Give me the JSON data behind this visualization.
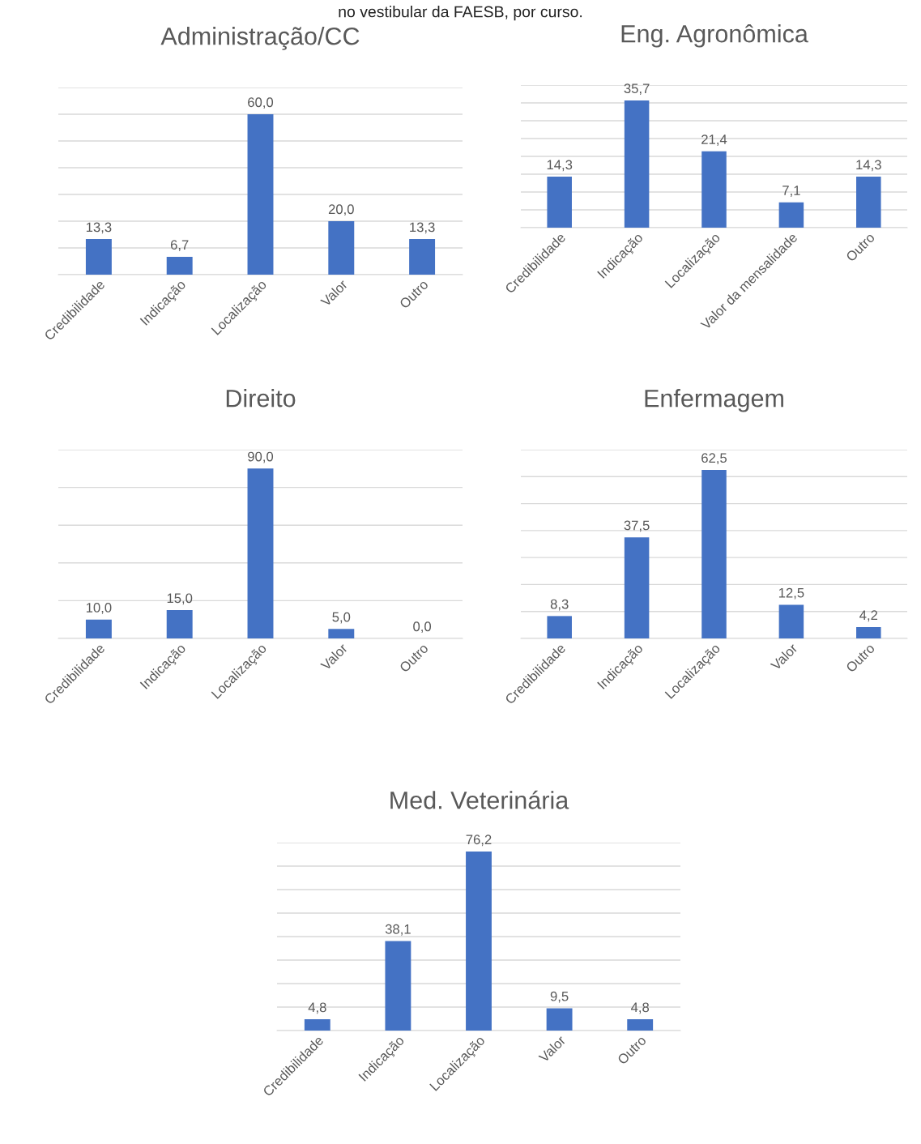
{
  "chart_data": [
    {
      "type": "bar",
      "title": "Administração/CC",
      "annotations": [
        "no vestibular da FAESB, por curso."
      ],
      "categories": [
        "Credibilidade",
        "Indicação",
        "Localização",
        "Valor",
        "Outro"
      ],
      "values": [
        13.3,
        6.7,
        60.0,
        20.0,
        13.3
      ],
      "color": "#4472c4",
      "data_labels": true,
      "value_labels": [
        "13,3",
        "6,7",
        "60,0",
        "20,0",
        "13,3"
      ],
      "ylim": [
        0,
        70
      ],
      "yticks": [
        {
          "value": 0,
          "label": null
        },
        {
          "value": 10,
          "label": null
        },
        {
          "value": 20,
          "label": null
        },
        {
          "value": 30,
          "label": null
        },
        {
          "value": 40,
          "label": null
        },
        {
          "value": 50,
          "label": null
        },
        {
          "value": 60,
          "label": null
        },
        {
          "value": 70,
          "label": null
        }
      ],
      "grid": "y",
      "tick_labels": "x"
    },
    {
      "type": "bar",
      "title": "Eng. Agronômica",
      "categories": [
        "Credibilidade",
        "Indicação",
        "Localização",
        "Valor da mensalidade",
        "Outro"
      ],
      "values": [
        14.3,
        35.7,
        21.4,
        7.1,
        14.3
      ],
      "color": "#4472c4",
      "data_labels": true,
      "value_labels": [
        "14,3",
        "35,7",
        "21,4",
        "7,1",
        "14,3"
      ],
      "ylim": [
        0,
        40
      ],
      "yticks": [
        {
          "value": 0,
          "label": null
        },
        {
          "value": 5,
          "label": null
        },
        {
          "value": 10,
          "label": null
        },
        {
          "value": 15,
          "label": null
        },
        {
          "value": 20,
          "label": null
        },
        {
          "value": 25,
          "label": null
        },
        {
          "value": 30,
          "label": null
        },
        {
          "value": 35,
          "label": null
        },
        {
          "value": 40,
          "label": null
        }
      ],
      "grid": "y",
      "tick_labels": "x"
    },
    {
      "type": "bar",
      "title": "Direito",
      "categories": [
        "Credibilidade",
        "Indicação",
        "Localização",
        "Valor",
        "Outro"
      ],
      "values": [
        10.0,
        15.0,
        90.0,
        5.0,
        0.0
      ],
      "color": "#4472c4",
      "data_labels": true,
      "value_labels": [
        "10,0",
        "15,0",
        "90,0",
        "5,0",
        "0,0"
      ],
      "ylim": [
        0,
        100
      ],
      "yticks": [
        {
          "value": 0,
          "label": null
        },
        {
          "value": 20,
          "label": null
        },
        {
          "value": 40,
          "label": null
        },
        {
          "value": 60,
          "label": null
        },
        {
          "value": 80,
          "label": null
        },
        {
          "value": 100,
          "label": null
        }
      ],
      "grid": "y",
      "tick_labels": "x"
    },
    {
      "type": "bar",
      "title": "Enfermagem",
      "categories": [
        "Credibilidade",
        "Indicação",
        "Localização",
        "Valor",
        "Outro"
      ],
      "values": [
        8.3,
        37.5,
        62.5,
        12.5,
        4.2
      ],
      "color": "#4472c4",
      "data_labels": true,
      "value_labels": [
        "8,3",
        "37,5",
        "62,5",
        "12,5",
        "4,2"
      ],
      "ylim": [
        0,
        70
      ],
      "yticks": [
        {
          "value": 0,
          "label": null
        },
        {
          "value": 10,
          "label": null
        },
        {
          "value": 20,
          "label": null
        },
        {
          "value": 30,
          "label": null
        },
        {
          "value": 40,
          "label": null
        },
        {
          "value": 50,
          "label": null
        },
        {
          "value": 60,
          "label": null
        },
        {
          "value": 70,
          "label": null
        }
      ],
      "grid": "y",
      "tick_labels": "x"
    },
    {
      "type": "bar",
      "title": "Med. Veterinária",
      "categories": [
        "Credibilidade",
        "Indicação",
        "Localização",
        "Valor",
        "Outro"
      ],
      "values": [
        4.8,
        38.1,
        76.2,
        9.5,
        4.8
      ],
      "color": "#4472c4",
      "data_labels": true,
      "value_labels": [
        "4,8",
        "38,1",
        "76,2",
        "9,5",
        "4,8"
      ],
      "ylim": [
        0,
        80
      ],
      "yticks": [
        {
          "value": 0,
          "label": null
        },
        {
          "value": 10,
          "label": null
        },
        {
          "value": 20,
          "label": null
        },
        {
          "value": 30,
          "label": null
        },
        {
          "value": 40,
          "label": null
        },
        {
          "value": 50,
          "label": null
        },
        {
          "value": 60,
          "label": null
        },
        {
          "value": 70,
          "label": null
        },
        {
          "value": 80,
          "label": null
        }
      ],
      "grid": "y",
      "tick_labels": "x"
    }
  ]
}
